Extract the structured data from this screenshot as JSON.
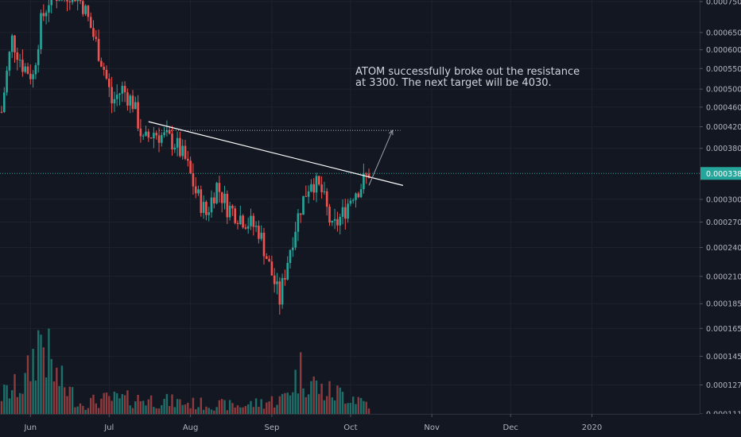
{
  "colors": {
    "background": "#131722",
    "up": "#26a69a",
    "down": "#ef5350",
    "vol_up": "#1e6f69",
    "vol_down": "#8f3a3c",
    "grid": "#1e222d",
    "price_line": "#26a69a",
    "trendline": "#ffffff",
    "dotted_line": "#b2b5be",
    "badge_text": "#ffffff"
  },
  "annotation": {
    "line1": "ATOM successfully broke out the resistance",
    "line2": "at 3300. The next target will be 4030."
  },
  "chart_data": {
    "type": "candlestick",
    "symbol": "ATOM",
    "y_scale": "log",
    "grid": true,
    "current_price": "0.0003383",
    "current_price_value": 0.0003383,
    "ylim": [
      0.000109,
      0.00081
    ],
    "y_ticks": [
      "0.0007500",
      "0.0006500",
      "0.0006000",
      "0.0005500",
      "0.0005000",
      "0.0004600",
      "0.0004200",
      "0.0003800",
      "0.0003000",
      "0.0002700",
      "0.0002400",
      "0.0002100",
      "0.0001850",
      "0.0001650",
      "0.0001450",
      "0.0001270",
      "0.0001110"
    ],
    "x_ticks": [
      "Jun",
      "Jul",
      "Aug",
      "Sep",
      "Oct",
      "Nov",
      "Dec",
      "2020"
    ],
    "start_date": "2019-05-21",
    "end_date": "2019-10-08",
    "candle_anchors": [
      [
        "2019-05-21",
        0.00045
      ],
      [
        "2019-05-25",
        0.00063
      ],
      [
        "2019-05-29",
        0.00056
      ],
      [
        "2019-06-02",
        0.00053
      ],
      [
        "2019-06-05",
        0.00068
      ],
      [
        "2019-06-09",
        0.00078
      ],
      [
        "2019-06-13",
        0.00077
      ],
      [
        "2019-06-17",
        0.00079
      ],
      [
        "2019-06-21",
        0.00074
      ],
      [
        "2019-06-25",
        0.00064
      ],
      [
        "2019-06-29",
        0.00055
      ],
      [
        "2019-07-02",
        0.00047
      ],
      [
        "2019-07-06",
        0.0005
      ],
      [
        "2019-07-10",
        0.00047
      ],
      [
        "2019-07-14",
        0.00039
      ],
      [
        "2019-07-18",
        0.00041
      ],
      [
        "2019-07-22",
        0.0004
      ],
      [
        "2019-07-26",
        0.00039
      ],
      [
        "2019-07-30",
        0.00036
      ],
      [
        "2019-08-03",
        0.00031
      ],
      [
        "2019-08-07",
        0.00028
      ],
      [
        "2019-08-11",
        0.00032
      ],
      [
        "2019-08-15",
        0.00029
      ],
      [
        "2019-08-19",
        0.00028
      ],
      [
        "2019-08-23",
        0.00027
      ],
      [
        "2019-08-27",
        0.00026
      ],
      [
        "2019-08-31",
        0.00022
      ],
      [
        "2019-09-04",
        0.000188
      ],
      [
        "2019-09-08",
        0.00024
      ],
      [
        "2019-09-12",
        0.00029
      ],
      [
        "2019-09-16",
        0.00033
      ],
      [
        "2019-09-20",
        0.00031
      ],
      [
        "2019-09-24",
        0.00026
      ],
      [
        "2019-09-28",
        0.00028
      ],
      [
        "2019-10-02",
        0.00031
      ],
      [
        "2019-10-05",
        0.00032
      ],
      [
        "2019-10-08",
        0.00034
      ]
    ],
    "volume_anchors": [
      [
        "2019-05-21",
        0.25
      ],
      [
        "2019-05-30",
        0.4
      ],
      [
        "2019-06-05",
        1.0
      ],
      [
        "2019-06-10",
        0.5
      ],
      [
        "2019-06-20",
        0.15
      ],
      [
        "2019-07-01",
        0.2
      ],
      [
        "2019-07-15",
        0.2
      ],
      [
        "2019-08-01",
        0.15
      ],
      [
        "2019-08-20",
        0.12
      ],
      [
        "2019-09-05",
        0.2
      ],
      [
        "2019-09-12",
        0.55
      ],
      [
        "2019-09-20",
        0.3
      ],
      [
        "2019-10-01",
        0.25
      ],
      [
        "2019-10-08",
        0.15
      ]
    ],
    "drawings": {
      "trendline": {
        "from": [
          "2019-07-16",
          0.00043
        ],
        "to": [
          "2019-10-21",
          0.00032
        ]
      },
      "resistance": {
        "from": [
          "2019-07-20",
          0.000413
        ],
        "to": [
          "2019-10-20",
          0.000413
        ]
      },
      "arrow": {
        "from": [
          "2019-10-08",
          0.00032
        ],
        "to": [
          "2019-10-17",
          0.000413
        ]
      }
    }
  }
}
